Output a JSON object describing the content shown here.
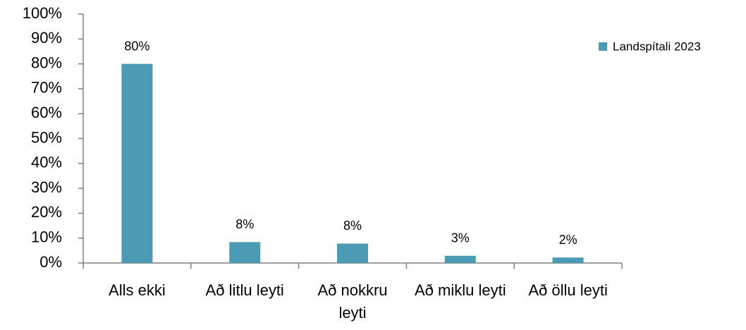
{
  "chart_data": {
    "type": "bar",
    "categories": [
      "Alls ekki",
      "Að litlu leyti",
      "Að nokkru leyti",
      "Að miklu leyti",
      "Að öllu leyti"
    ],
    "series": [
      {
        "name": "Landspítali 2023",
        "color": "#4a9bb3",
        "values": [
          80,
          8.4,
          7.8,
          2.9,
          2.2
        ],
        "value_labels": [
          "80%",
          "8%",
          "8%",
          "3%",
          "2%"
        ]
      }
    ],
    "ylim": [
      0,
      100
    ],
    "yticks": [
      {
        "value": 0,
        "label": "0%"
      },
      {
        "value": 10,
        "label": "10%"
      },
      {
        "value": 20,
        "label": "20%"
      },
      {
        "value": 30,
        "label": "30%"
      },
      {
        "value": 40,
        "label": "40%"
      },
      {
        "value": 50,
        "label": "50%"
      },
      {
        "value": 60,
        "label": "60%"
      },
      {
        "value": 70,
        "label": "70%"
      },
      {
        "value": 80,
        "label": "80%"
      },
      {
        "value": 90,
        "label": "90%"
      },
      {
        "value": 100,
        "label": "100%"
      }
    ],
    "grid": false,
    "legend": "top-right"
  }
}
